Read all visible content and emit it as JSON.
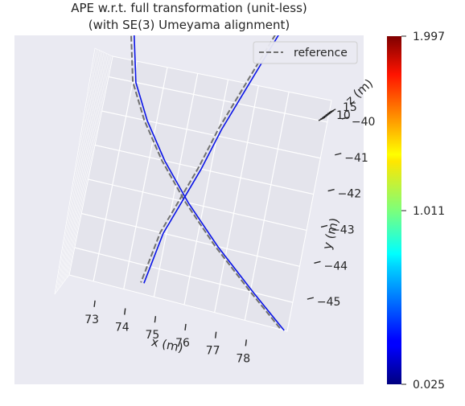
{
  "chart_data": {
    "type": "line",
    "projection": "3d",
    "title": "APE w.r.t. full transformation (unit-less)",
    "subtitle": "(with SE(3) Umeyama alignment)",
    "xlabel": "x (m)",
    "ylabel": "y (m)",
    "zlabel": "z (m)",
    "x_ticks": [
      "73",
      "74",
      "75",
      "76",
      "77",
      "78"
    ],
    "y_ticks": [
      "−45",
      "−44",
      "−43",
      "−42",
      "−41",
      "−40"
    ],
    "z_ticks": [
      "10",
      "15"
    ],
    "legend": {
      "entries": [
        "reference"
      ],
      "placement": "top-right"
    },
    "colorbar": {
      "colormap": "jet",
      "min": 0.025,
      "mid": 1.011,
      "max": 1.997,
      "tick_labels": [
        "0.025",
        "1.011",
        "1.997"
      ]
    },
    "series": [
      {
        "name": "reference",
        "style": "dashed",
        "color": "#707070",
        "segments": [
          {
            "x": [
              72.6,
              73.0,
              73.6,
              74.4,
              75.4,
              76.6,
              78.0,
              79.2
            ],
            "y": [
              -38.5,
              -40.0,
              -41.0,
              -42.0,
              -43.0,
              -44.0,
              -45.0,
              -45.8
            ]
          },
          {
            "x": [
              77.4,
              76.0,
              75.6,
              75.2,
              74.8,
              74.5
            ],
            "y": [
              -37.5,
              -40.8,
              -42.0,
              -43.0,
              -44.0,
              -45.5
            ]
          }
        ]
      },
      {
        "name": "",
        "style": "solid",
        "color": "#0a14e6",
        "segments": [
          {
            "x": [
              72.7,
              73.1,
              73.7,
              74.5,
              75.5,
              76.7,
              78.1,
              79.3
            ],
            "y": [
              -38.5,
              -40.0,
              -41.0,
              -42.0,
              -43.0,
              -44.0,
              -45.0,
              -45.8
            ]
          },
          {
            "x": [
              77.5,
              76.1,
              75.7,
              75.3,
              74.9,
              74.6
            ],
            "y": [
              -37.5,
              -40.8,
              -42.0,
              -43.0,
              -44.0,
              -45.5
            ]
          }
        ]
      }
    ]
  }
}
